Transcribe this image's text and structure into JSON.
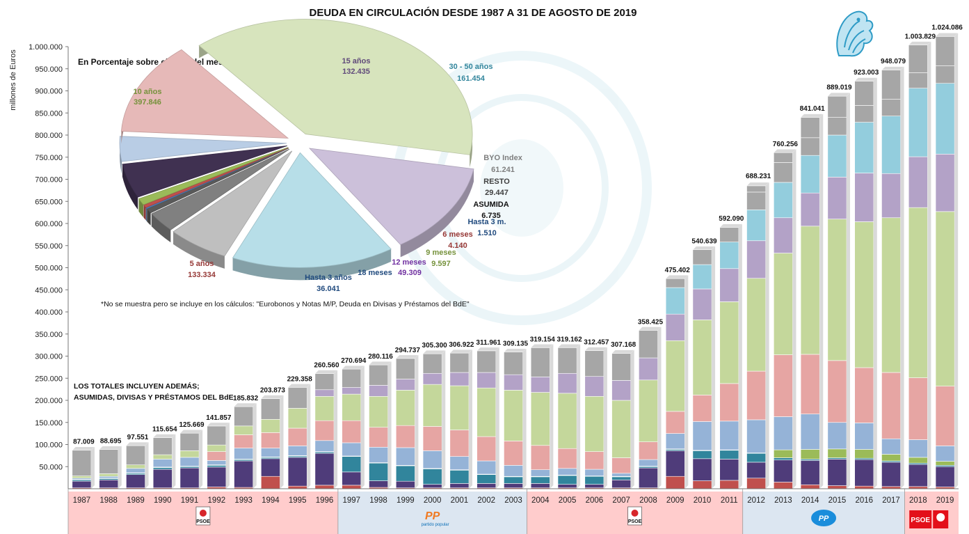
{
  "chart_data": {
    "type": "bar",
    "title": "DEUDA EN CIRCULACIÓN DESDE 1987 A 31 DE AGOSTO DE 2019",
    "ylabel": "millones de Euros",
    "ylim": [
      0,
      1000000
    ],
    "y_ticks": [
      "50.000",
      "100.000",
      "150.000",
      "200.000",
      "250.000",
      "300.000",
      "350.000",
      "400.000",
      "450.000",
      "500.000",
      "550.000",
      "600.000",
      "650.000",
      "700.000",
      "750.000",
      "800.000",
      "850.000",
      "900.000",
      "950.000",
      "1.000.000"
    ],
    "categories": [
      "1987",
      "1988",
      "1989",
      "1990",
      "1991",
      "1992",
      "1993",
      "1994",
      "1995",
      "1996",
      "1997",
      "1998",
      "1999",
      "2000",
      "2001",
      "2002",
      "2003",
      "2004",
      "2005",
      "2006",
      "2007",
      "2008",
      "2009",
      "2010",
      "2011",
      "2012",
      "2013",
      "2014",
      "2015",
      "2016",
      "2017",
      "2018",
      "2019"
    ],
    "totals": [
      87009,
      88695,
      97551,
      115654,
      125669,
      141857,
      185832,
      203873,
      229358,
      260560,
      270694,
      280116,
      294737,
      305300,
      306922,
      311961,
      309135,
      319154,
      319162,
      312457,
      307168,
      358425,
      475402,
      540639,
      592090,
      688231,
      760256,
      841041,
      889019,
      923003,
      948079,
      1003829,
      1024086
    ],
    "total_labels": [
      "87.009",
      "88.695",
      "97.551",
      "115.654",
      "125.669",
      "141.857",
      "185.832",
      "203.873",
      "229.358",
      "260.560",
      "270.694",
      "280.116",
      "294.737",
      "305.300",
      "306.922",
      "311.961",
      "309.135",
      "319.154",
      "319.162",
      "312.457",
      "307.168",
      "358.425",
      "475.402",
      "540.639",
      "592.090",
      "688.231",
      "760.256",
      "841.041",
      "889.019",
      "923.003",
      "948.079",
      "1.003.829",
      "1.024.086"
    ],
    "series": [
      {
        "name": "6 meses",
        "color": "#c0504d",
        "values": [
          2000,
          2000,
          2000,
          2000,
          2000,
          4000,
          3000,
          28000,
          6000,
          8000,
          8000,
          3000,
          2000,
          2000,
          2000,
          2000,
          2000,
          2000,
          2000,
          2000,
          2000,
          2000,
          28000,
          18000,
          19000,
          24000,
          15000,
          9000,
          7000,
          6000,
          5000,
          5000,
          4000
        ]
      },
      {
        "name": "18 meses",
        "color": "#4f3c7a",
        "values": [
          15000,
          18000,
          30000,
          42000,
          45000,
          45000,
          60000,
          40000,
          65000,
          72000,
          30000,
          15000,
          15000,
          8000,
          10000,
          10000,
          10000,
          10000,
          8000,
          8000,
          18000,
          45000,
          58000,
          50000,
          48000,
          36000,
          50000,
          55000,
          60000,
          60000,
          55000,
          50000,
          46000
        ]
      },
      {
        "name": "Hasta 3 meses",
        "color": "#31859c",
        "values": [
          3000,
          3000,
          3000,
          4000,
          3000,
          4000,
          3000,
          3000,
          3000,
          3000,
          35000,
          40000,
          35000,
          35000,
          30000,
          20000,
          15000,
          15000,
          20000,
          18000,
          7000,
          3000,
          3000,
          18000,
          20000,
          20000,
          5000,
          3000,
          3000,
          3000,
          3000,
          3000,
          3000
        ]
      },
      {
        "name": "9 meses",
        "color": "#9bbb59",
        "values": [
          1000,
          1000,
          1000,
          1000,
          1000,
          1000,
          1000,
          1000,
          1000,
          1000,
          1000,
          1000,
          1000,
          1000,
          1000,
          1000,
          1000,
          1000,
          1000,
          1000,
          1000,
          1000,
          1000,
          1000,
          1000,
          1000,
          18000,
          22000,
          20000,
          20000,
          15000,
          13000,
          9000
        ]
      },
      {
        "name": "Hasta 3 años",
        "color": "#95b3d7",
        "values": [
          3000,
          4000,
          10000,
          18000,
          20000,
          10000,
          25000,
          20000,
          22000,
          25000,
          30000,
          35000,
          40000,
          40000,
          30000,
          30000,
          25000,
          15000,
          15000,
          15000,
          7000,
          15000,
          35000,
          65000,
          65000,
          75000,
          75000,
          80000,
          60000,
          60000,
          35000,
          40000,
          35000
        ]
      },
      {
        "name": "5 años",
        "color": "#e6a5a3",
        "values": [
          0,
          0,
          0,
          0,
          0,
          20000,
          30000,
          35000,
          40000,
          45000,
          50000,
          45000,
          50000,
          55000,
          60000,
          55000,
          55000,
          55000,
          45000,
          40000,
          35000,
          40000,
          50000,
          60000,
          85000,
          110000,
          140000,
          135000,
          140000,
          125000,
          150000,
          140000,
          135000
        ]
      },
      {
        "name": "10 años",
        "color": "#c4d79b",
        "values": [
          5000,
          6000,
          8000,
          10000,
          15000,
          15000,
          20000,
          30000,
          45000,
          55000,
          60000,
          70000,
          80000,
          95000,
          100000,
          110000,
          115000,
          120000,
          125000,
          125000,
          130000,
          140000,
          160000,
          170000,
          185000,
          210000,
          230000,
          290000,
          320000,
          330000,
          350000,
          385000,
          395000
        ]
      },
      {
        "name": "15 años",
        "color": "#b3a2c7",
        "values": [
          0,
          0,
          0,
          0,
          0,
          0,
          0,
          0,
          0,
          15000,
          15000,
          25000,
          25000,
          25000,
          30000,
          35000,
          35000,
          35000,
          45000,
          45000,
          45000,
          50000,
          60000,
          70000,
          75000,
          85000,
          80000,
          75000,
          95000,
          110000,
          100000,
          115000,
          130000
        ]
      },
      {
        "name": "30 - 50 años",
        "color": "#93cddd",
        "values": [
          0,
          0,
          0,
          0,
          0,
          0,
          0,
          0,
          0,
          0,
          0,
          0,
          0,
          0,
          0,
          0,
          0,
          0,
          0,
          0,
          0,
          0,
          60000,
          55000,
          60000,
          70000,
          80000,
          85000,
          95000,
          115000,
          130000,
          155000,
          160000
        ]
      },
      {
        "name": "BYO Index",
        "color": "#a6a6a6",
        "values": [
          0,
          0,
          0,
          0,
          0,
          0,
          0,
          0,
          0,
          0,
          0,
          0,
          0,
          0,
          0,
          0,
          0,
          0,
          0,
          0,
          0,
          0,
          0,
          0,
          0,
          40000,
          45000,
          40000,
          40000,
          38000,
          38000,
          35000,
          40000
        ]
      },
      {
        "name": "RESTO",
        "color": "#a6a6a6",
        "values": [
          58009,
          54695,
          43551,
          38654,
          39669,
          42857,
          43832,
          46873,
          47358,
          36560,
          41694,
          46116,
          46737,
          44300,
          43922,
          48961,
          51135,
          66154,
          58162,
          58457,
          61168,
          62425,
          20402,
          33639,
          33090,
          14231,
          22256,
          46041,
          48019,
          55003,
          66079,
          62829,
          66086
        ]
      }
    ],
    "pie": {
      "title": "En Porcentaje sobre el Total del mes*",
      "slices": [
        {
          "name": "10 años",
          "value": 397846,
          "value_label": "397.846",
          "color": "#d7e4bd",
          "label_color": "#76923c"
        },
        {
          "name": "15 años",
          "value": 132435,
          "value_label": "132.435",
          "color": "#ccc0da",
          "label_color": "#5f497a"
        },
        {
          "name": "30 - 50 años",
          "value": 161454,
          "value_label": "161.454",
          "color": "#b7dee8",
          "label_color": "#31859c"
        },
        {
          "name": "BYO Index",
          "value": 61241,
          "value_label": "61.241",
          "color": "#bfbfbf",
          "label_color": "#7f7f7f"
        },
        {
          "name": "RESTO",
          "value": 29447,
          "value_label": "29.447",
          "color": "#808080",
          "label_color": "#404040"
        },
        {
          "name": "ASUMIDA",
          "value": 6735,
          "value_label": "6.735",
          "color": "#595959",
          "label_color": "#111111"
        },
        {
          "name": "Hasta 3 m.",
          "value": 1510,
          "value_label": "1.510",
          "color": "#4f81bd",
          "label_color": "#1f497d"
        },
        {
          "name": "6 meses",
          "value": 4140,
          "value_label": "4.140",
          "color": "#c0504d",
          "label_color": "#953735"
        },
        {
          "name": "9 meses",
          "value": 9597,
          "value_label": "9.597",
          "color": "#9bbb59",
          "label_color": "#76923c"
        },
        {
          "name": "12 meses",
          "value": 49309,
          "value_label": "49.309",
          "color": "#403151",
          "label_color": "#7030a0"
        },
        {
          "name": "18 meses",
          "value": 0,
          "value_label": "",
          "color": "#403151",
          "label_color": "#1f497d"
        },
        {
          "name": "Hasta 3 años",
          "value": 36041,
          "value_label": "36.041",
          "color": "#b9cde5",
          "label_color": "#1f497d"
        },
        {
          "name": "5 años",
          "value": 133334,
          "value_label": "133.334",
          "color": "#e6b9b8",
          "label_color": "#953735"
        }
      ]
    },
    "note": "*No se muestra pero se incluye en los cálculos: \"Eurobonos y Notas  M/P, Deuda en Divisas y Préstamos del BdE\"",
    "totals_note_1": "LOS TOTALES  INCLUYEN ADEMÁS;",
    "totals_note_2": "ASUMIDAS, DIVISAS Y PRÉSTAMOS  DEL BdE",
    "periods": [
      {
        "party": "PSOE",
        "from": 0,
        "to": 9,
        "color": "#ffcccc"
      },
      {
        "party": "PP",
        "from": 10,
        "to": 16,
        "color": "#dce6f1"
      },
      {
        "party": "PSOE",
        "from": 17,
        "to": 24,
        "color": "#ffcccc"
      },
      {
        "party": "PP",
        "from": 25,
        "to": 30,
        "color": "#dce6f1"
      },
      {
        "party": "PSOE",
        "from": 31,
        "to": 32,
        "color": "#ffcccc"
      }
    ],
    "logos": {
      "psoe_text": "PSOE",
      "pp_text": "PP",
      "pp_sub": "partido popular"
    }
  }
}
